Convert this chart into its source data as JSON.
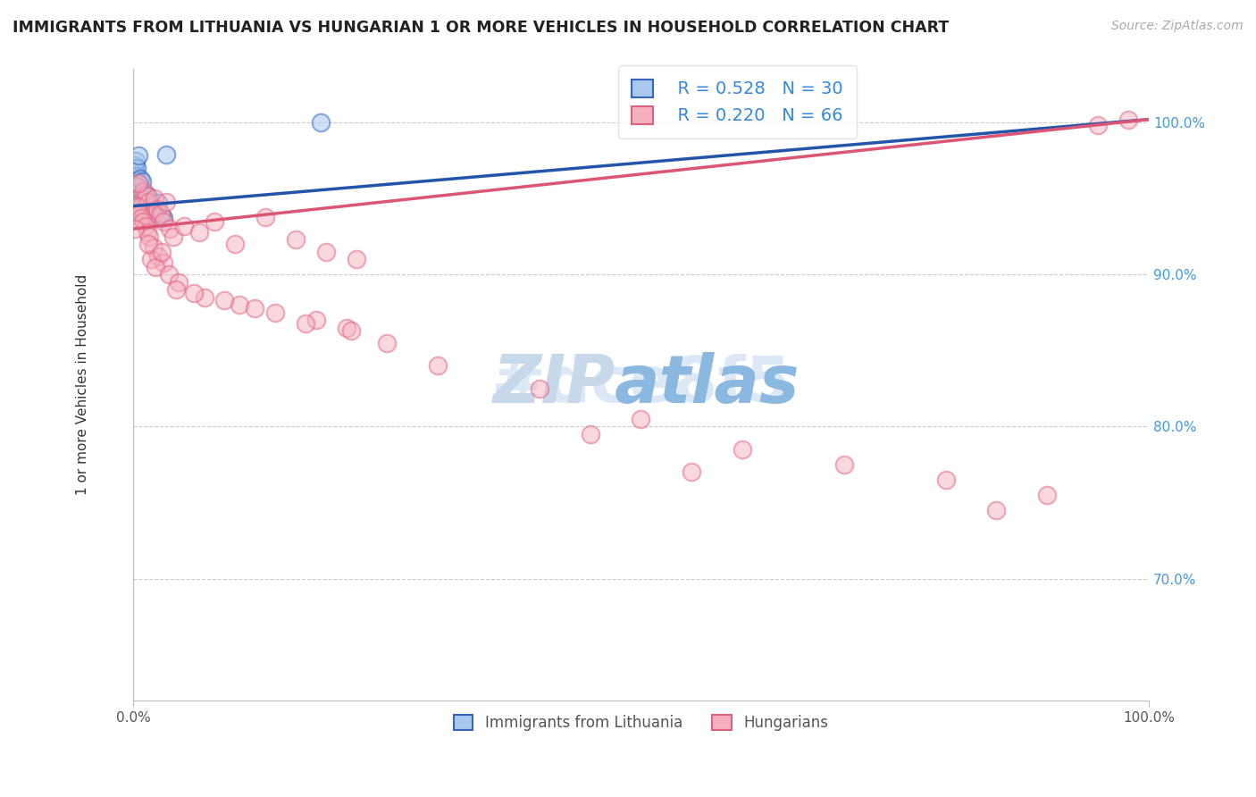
{
  "title": "IMMIGRANTS FROM LITHUANIA VS HUNGARIAN 1 OR MORE VEHICLES IN HOUSEHOLD CORRELATION CHART",
  "source_text": "Source: ZipAtlas.com",
  "ylabel": "1 or more Vehicles in Household",
  "legend_blue_r": "R = 0.528",
  "legend_blue_n": "N = 30",
  "legend_pink_r": "R = 0.220",
  "legend_pink_n": "N = 66",
  "legend_label_blue": "Immigrants from Lithuania",
  "legend_label_pink": "Hungarians",
  "xlim": [
    0.0,
    100.0
  ],
  "ylim": [
    62.0,
    103.5
  ],
  "ytick_values": [
    70.0,
    80.0,
    90.0,
    100.0
  ],
  "ytick_labels": [
    "70.0%",
    "80.0%",
    "90.0%",
    "100.0%"
  ],
  "background_color": "#ffffff",
  "grid_color": "#cccccc",
  "blue_fill": "#a8c8f0",
  "blue_edge": "#3366bb",
  "pink_fill": "#f5b0c0",
  "pink_edge": "#e06080",
  "blue_line_color": "#2255aa",
  "pink_line_color": "#dd5575",
  "watermark_color": "#dce8f5",
  "blue_line_x": [
    0,
    100
  ],
  "blue_line_y": [
    94.5,
    100.2
  ],
  "pink_line_x": [
    0,
    100
  ],
  "pink_line_y": [
    93.0,
    100.2
  ],
  "blue_x": [
    0.15,
    0.2,
    0.25,
    0.3,
    0.35,
    0.4,
    0.45,
    0.5,
    0.55,
    0.6,
    0.65,
    0.7,
    0.75,
    0.8,
    0.85,
    0.9,
    1.0,
    1.1,
    1.2,
    1.3,
    1.5,
    1.7,
    2.0,
    2.2,
    2.5,
    2.8,
    3.0,
    3.3,
    0.3,
    18.5
  ],
  "blue_y": [
    97.2,
    96.8,
    97.5,
    96.5,
    97.0,
    96.2,
    95.8,
    97.8,
    96.0,
    95.5,
    95.2,
    95.7,
    96.3,
    94.9,
    95.4,
    96.1,
    95.0,
    94.6,
    95.3,
    94.8,
    95.1,
    94.4,
    94.2,
    94.0,
    94.7,
    93.9,
    93.7,
    97.9,
    94.3,
    100.0
  ],
  "pink_x": [
    0.3,
    0.5,
    0.7,
    0.9,
    1.1,
    1.3,
    1.5,
    1.7,
    1.9,
    2.1,
    2.4,
    2.7,
    3.0,
    3.3,
    3.6,
    4.0,
    5.0,
    6.5,
    8.0,
    10.0,
    13.0,
    16.0,
    19.0,
    22.0,
    0.4,
    0.6,
    0.8,
    1.0,
    1.2,
    1.4,
    1.6,
    2.0,
    2.5,
    3.0,
    0.5,
    1.8,
    2.2,
    3.5,
    4.5,
    7.0,
    10.5,
    14.0,
    18.0,
    21.0,
    0.2,
    1.5,
    2.8,
    4.2,
    6.0,
    9.0,
    12.0,
    17.0,
    21.5,
    25.0,
    30.0,
    40.0,
    50.0,
    60.0,
    70.0,
    80.0,
    90.0,
    95.0,
    98.0,
    45.0,
    55.0,
    85.0
  ],
  "pink_y": [
    95.8,
    95.0,
    94.5,
    94.2,
    95.5,
    95.2,
    94.8,
    93.8,
    94.0,
    95.0,
    94.3,
    94.0,
    93.5,
    94.8,
    93.0,
    92.5,
    93.2,
    92.8,
    93.5,
    92.0,
    93.8,
    92.3,
    91.5,
    91.0,
    94.5,
    94.0,
    93.7,
    93.5,
    93.2,
    92.8,
    92.5,
    91.8,
    91.2,
    90.8,
    96.0,
    91.0,
    90.5,
    90.0,
    89.5,
    88.5,
    88.0,
    87.5,
    87.0,
    86.5,
    93.0,
    92.0,
    91.5,
    89.0,
    88.8,
    88.3,
    87.8,
    86.8,
    86.3,
    85.5,
    84.0,
    82.5,
    80.5,
    78.5,
    77.5,
    76.5,
    75.5,
    99.8,
    100.2,
    79.5,
    77.0,
    74.5
  ]
}
